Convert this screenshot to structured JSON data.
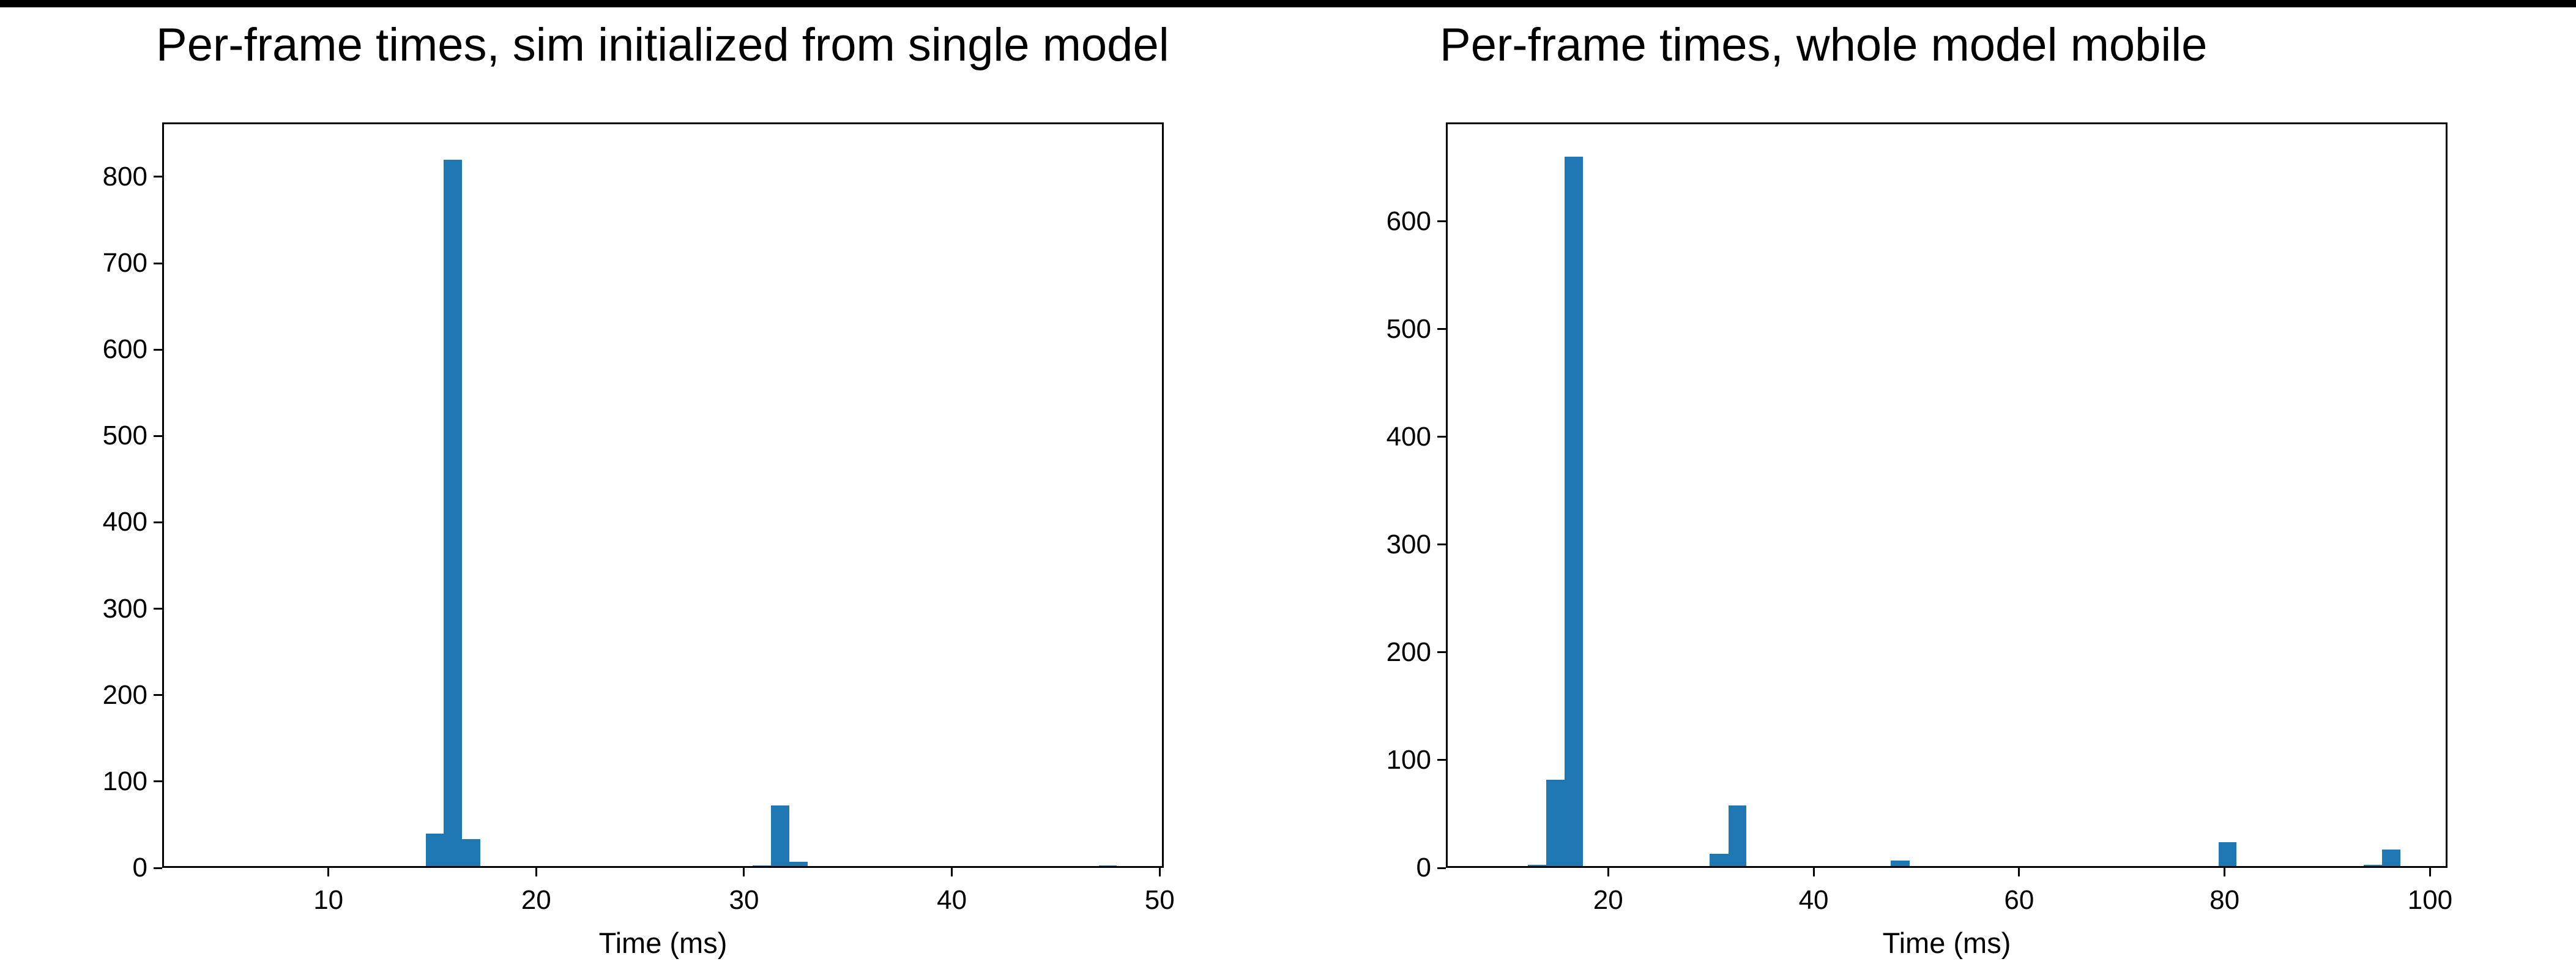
{
  "page": {
    "background": "#ffffff",
    "top_bar_color": "#000000",
    "axis_color": "#000000",
    "bar_color": "#1f77b4"
  },
  "chart_data": [
    {
      "type": "bar",
      "subtype": "histogram",
      "title": "Per-frame times, sim initialized from single model",
      "xlabel": "Time (ms)",
      "ylabel": "",
      "xlim": [
        2.0,
        50.2
      ],
      "ylim": [
        0,
        863
      ],
      "xticks": [
        10,
        20,
        30,
        40,
        50
      ],
      "yticks": [
        0,
        100,
        200,
        300,
        400,
        500,
        600,
        700,
        800
      ],
      "grid": false,
      "legend": null,
      "bars": [
        {
          "x0": 4.3,
          "x1": 5.16,
          "count": 1
        },
        {
          "x0": 14.69,
          "x1": 15.54,
          "count": 40
        },
        {
          "x0": 15.54,
          "x1": 16.43,
          "count": 820
        },
        {
          "x0": 16.43,
          "x1": 17.31,
          "count": 33
        },
        {
          "x0": 30.41,
          "x1": 31.3,
          "count": 3
        },
        {
          "x0": 31.3,
          "x1": 32.18,
          "count": 72
        },
        {
          "x0": 32.18,
          "x1": 33.06,
          "count": 7
        },
        {
          "x0": 47.08,
          "x1": 47.94,
          "count": 3
        }
      ]
    },
    {
      "type": "bar",
      "subtype": "histogram",
      "title": "Per-frame times, whole model mobile",
      "xlabel": "Time (ms)",
      "ylabel": "",
      "xlim": [
        4.2,
        101.7
      ],
      "ylim": [
        0,
        692
      ],
      "xticks": [
        20,
        40,
        60,
        80,
        100
      ],
      "yticks": [
        0,
        100,
        200,
        300,
        400,
        500,
        600
      ],
      "grid": false,
      "legend": null,
      "bars": [
        {
          "x0": 8.6,
          "x1": 10.4,
          "count": 1
        },
        {
          "x0": 12.18,
          "x1": 13.97,
          "count": 3
        },
        {
          "x0": 13.97,
          "x1": 15.75,
          "count": 82
        },
        {
          "x0": 15.75,
          "x1": 17.54,
          "count": 660
        },
        {
          "x0": 29.87,
          "x1": 31.71,
          "count": 13
        },
        {
          "x0": 31.71,
          "x1": 33.44,
          "count": 58
        },
        {
          "x0": 47.5,
          "x1": 49.34,
          "count": 7
        },
        {
          "x0": 79.42,
          "x1": 81.15,
          "count": 24
        },
        {
          "x0": 93.54,
          "x1": 95.32,
          "count": 3
        },
        {
          "x0": 95.32,
          "x1": 97.11,
          "count": 17
        }
      ]
    }
  ]
}
